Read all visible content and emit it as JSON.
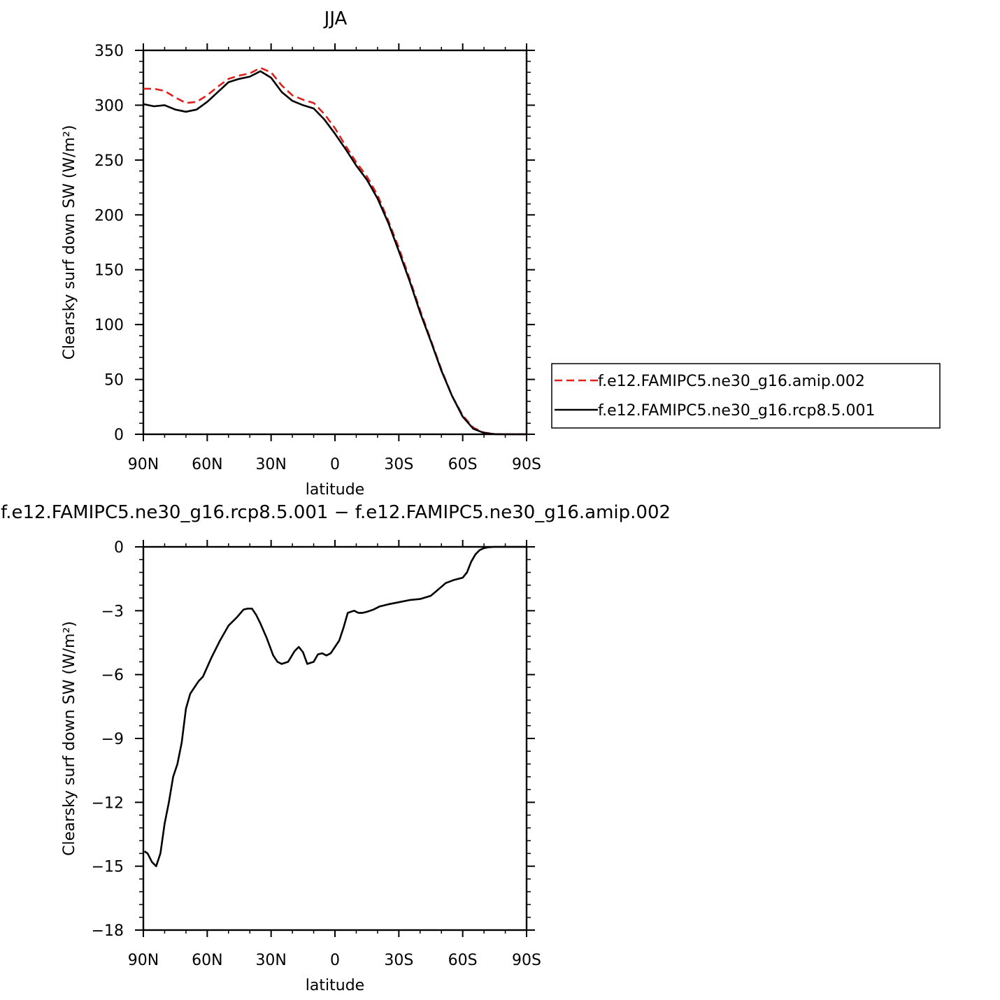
{
  "chart_data": [
    {
      "type": "line",
      "title": "JJA",
      "xlabel": "latitude",
      "ylabel": "Clearsky surf down SW (W/m²)",
      "xlim": [
        90,
        -90
      ],
      "ylim": [
        0,
        350
      ],
      "x_ticks": [
        {
          "value": 90,
          "label": "90N"
        },
        {
          "value": 60,
          "label": "60N"
        },
        {
          "value": 30,
          "label": "30N"
        },
        {
          "value": 0,
          "label": "0"
        },
        {
          "value": -30,
          "label": "30S"
        },
        {
          "value": -60,
          "label": "60S"
        },
        {
          "value": -90,
          "label": "90S"
        }
      ],
      "y_ticks": [
        {
          "value": 0,
          "label": "0"
        },
        {
          "value": 50,
          "label": "50"
        },
        {
          "value": 100,
          "label": "100"
        },
        {
          "value": 150,
          "label": "150"
        },
        {
          "value": 200,
          "label": "200"
        },
        {
          "value": 250,
          "label": "250"
        },
        {
          "value": 300,
          "label": "300"
        },
        {
          "value": 350,
          "label": "350"
        }
      ],
      "legend": "right",
      "series": [
        {
          "name": "f.e12.FAMIPC5.ne30_g16.amip.002",
          "color": "#e0201b",
          "dash": "dashed",
          "x": [
            90,
            85,
            80,
            75,
            70,
            65,
            60,
            55,
            50,
            45,
            40,
            35,
            30,
            25,
            20,
            15,
            10,
            5,
            0,
            -5,
            -10,
            -15,
            -20,
            -25,
            -30,
            -35,
            -40,
            -45,
            -50,
            -55,
            -60,
            -65,
            -70,
            -75,
            -80,
            -85,
            -90
          ],
          "values": [
            315,
            315,
            313,
            307,
            302,
            303,
            309,
            317,
            324,
            327,
            329,
            334,
            330,
            318,
            309,
            305,
            302,
            292,
            279,
            263,
            248,
            235,
            218,
            195,
            170,
            142,
            113,
            86,
            59,
            35,
            17,
            6,
            1.5,
            0.2,
            0,
            0,
            0
          ]
        },
        {
          "name": "f.e12.FAMIPC5.ne30_g16.rcp8.5.001",
          "color": "#000000",
          "dash": "solid",
          "x": [
            90,
            85,
            80,
            75,
            70,
            65,
            60,
            55,
            50,
            45,
            40,
            35,
            30,
            25,
            20,
            15,
            10,
            5,
            0,
            -5,
            -10,
            -15,
            -20,
            -25,
            -30,
            -35,
            -40,
            -45,
            -50,
            -55,
            -60,
            -65,
            -70,
            -75,
            -80,
            -85,
            -90
          ],
          "values": [
            301,
            299,
            300,
            296,
            294,
            296,
            303,
            312,
            321,
            324,
            326,
            331,
            325,
            312,
            304,
            300,
            297,
            287,
            274,
            260,
            245,
            232,
            215,
            193,
            167,
            140,
            111,
            85,
            58,
            35,
            16,
            5,
            1.2,
            0.1,
            0,
            0,
            0
          ]
        }
      ]
    },
    {
      "type": "line",
      "title": "f.e12.FAMIPC5.ne30_g16.rcp8.5.001 − f.e12.FAMIPC5.ne30_g16.amip.002",
      "xlabel": "latitude",
      "ylabel": "Clearsky surf down SW (W/m²)",
      "xlim": [
        90,
        -90
      ],
      "ylim": [
        -18,
        0
      ],
      "x_ticks": [
        {
          "value": 90,
          "label": "90N"
        },
        {
          "value": 60,
          "label": "60N"
        },
        {
          "value": 30,
          "label": "30N"
        },
        {
          "value": 0,
          "label": "0"
        },
        {
          "value": -30,
          "label": "30S"
        },
        {
          "value": -60,
          "label": "60S"
        },
        {
          "value": -90,
          "label": "90S"
        }
      ],
      "y_ticks": [
        {
          "value": 0,
          "label": "0"
        },
        {
          "value": -3,
          "label": "−3"
        },
        {
          "value": -6,
          "label": "−6"
        },
        {
          "value": -9,
          "label": "−9"
        },
        {
          "value": -12,
          "label": "−12"
        },
        {
          "value": -15,
          "label": "−15"
        },
        {
          "value": -18,
          "label": "−18"
        }
      ],
      "series": [
        {
          "color": "#000000",
          "dash": "solid",
          "x": [
            89.5,
            88,
            86,
            84,
            82,
            80,
            78,
            76,
            74,
            72,
            70,
            68,
            66,
            64,
            62,
            58,
            54,
            50,
            46,
            43,
            41,
            39,
            37,
            35,
            32,
            29,
            27,
            25,
            22,
            19,
            17,
            15,
            13,
            10,
            8,
            6,
            4,
            2,
            0,
            -2,
            -4,
            -6,
            -9,
            -11,
            -13,
            -15,
            -18,
            -21,
            -25,
            -30,
            -35,
            -40,
            -45,
            -48,
            -52,
            -56,
            -60,
            -62,
            -64,
            -66,
            -68,
            -70,
            -72,
            -75,
            -80,
            -85,
            -90
          ],
          "values": [
            -14.3,
            -14.4,
            -14.8,
            -15.0,
            -14.4,
            -13.0,
            -12.0,
            -10.8,
            -10.2,
            -9.2,
            -7.6,
            -6.9,
            -6.6,
            -6.3,
            -6.1,
            -5.2,
            -4.4,
            -3.7,
            -3.3,
            -2.95,
            -2.9,
            -2.9,
            -3.2,
            -3.6,
            -4.3,
            -5.1,
            -5.4,
            -5.5,
            -5.4,
            -4.9,
            -4.7,
            -4.95,
            -5.5,
            -5.4,
            -5.05,
            -5.0,
            -5.1,
            -5.0,
            -4.7,
            -4.4,
            -3.8,
            -3.1,
            -3.0,
            -3.1,
            -3.1,
            -3.05,
            -2.95,
            -2.8,
            -2.7,
            -2.6,
            -2.5,
            -2.45,
            -2.3,
            -2.05,
            -1.7,
            -1.55,
            -1.45,
            -1.2,
            -0.7,
            -0.35,
            -0.15,
            -0.06,
            -0.02,
            0,
            0,
            0,
            0
          ]
        }
      ]
    }
  ]
}
